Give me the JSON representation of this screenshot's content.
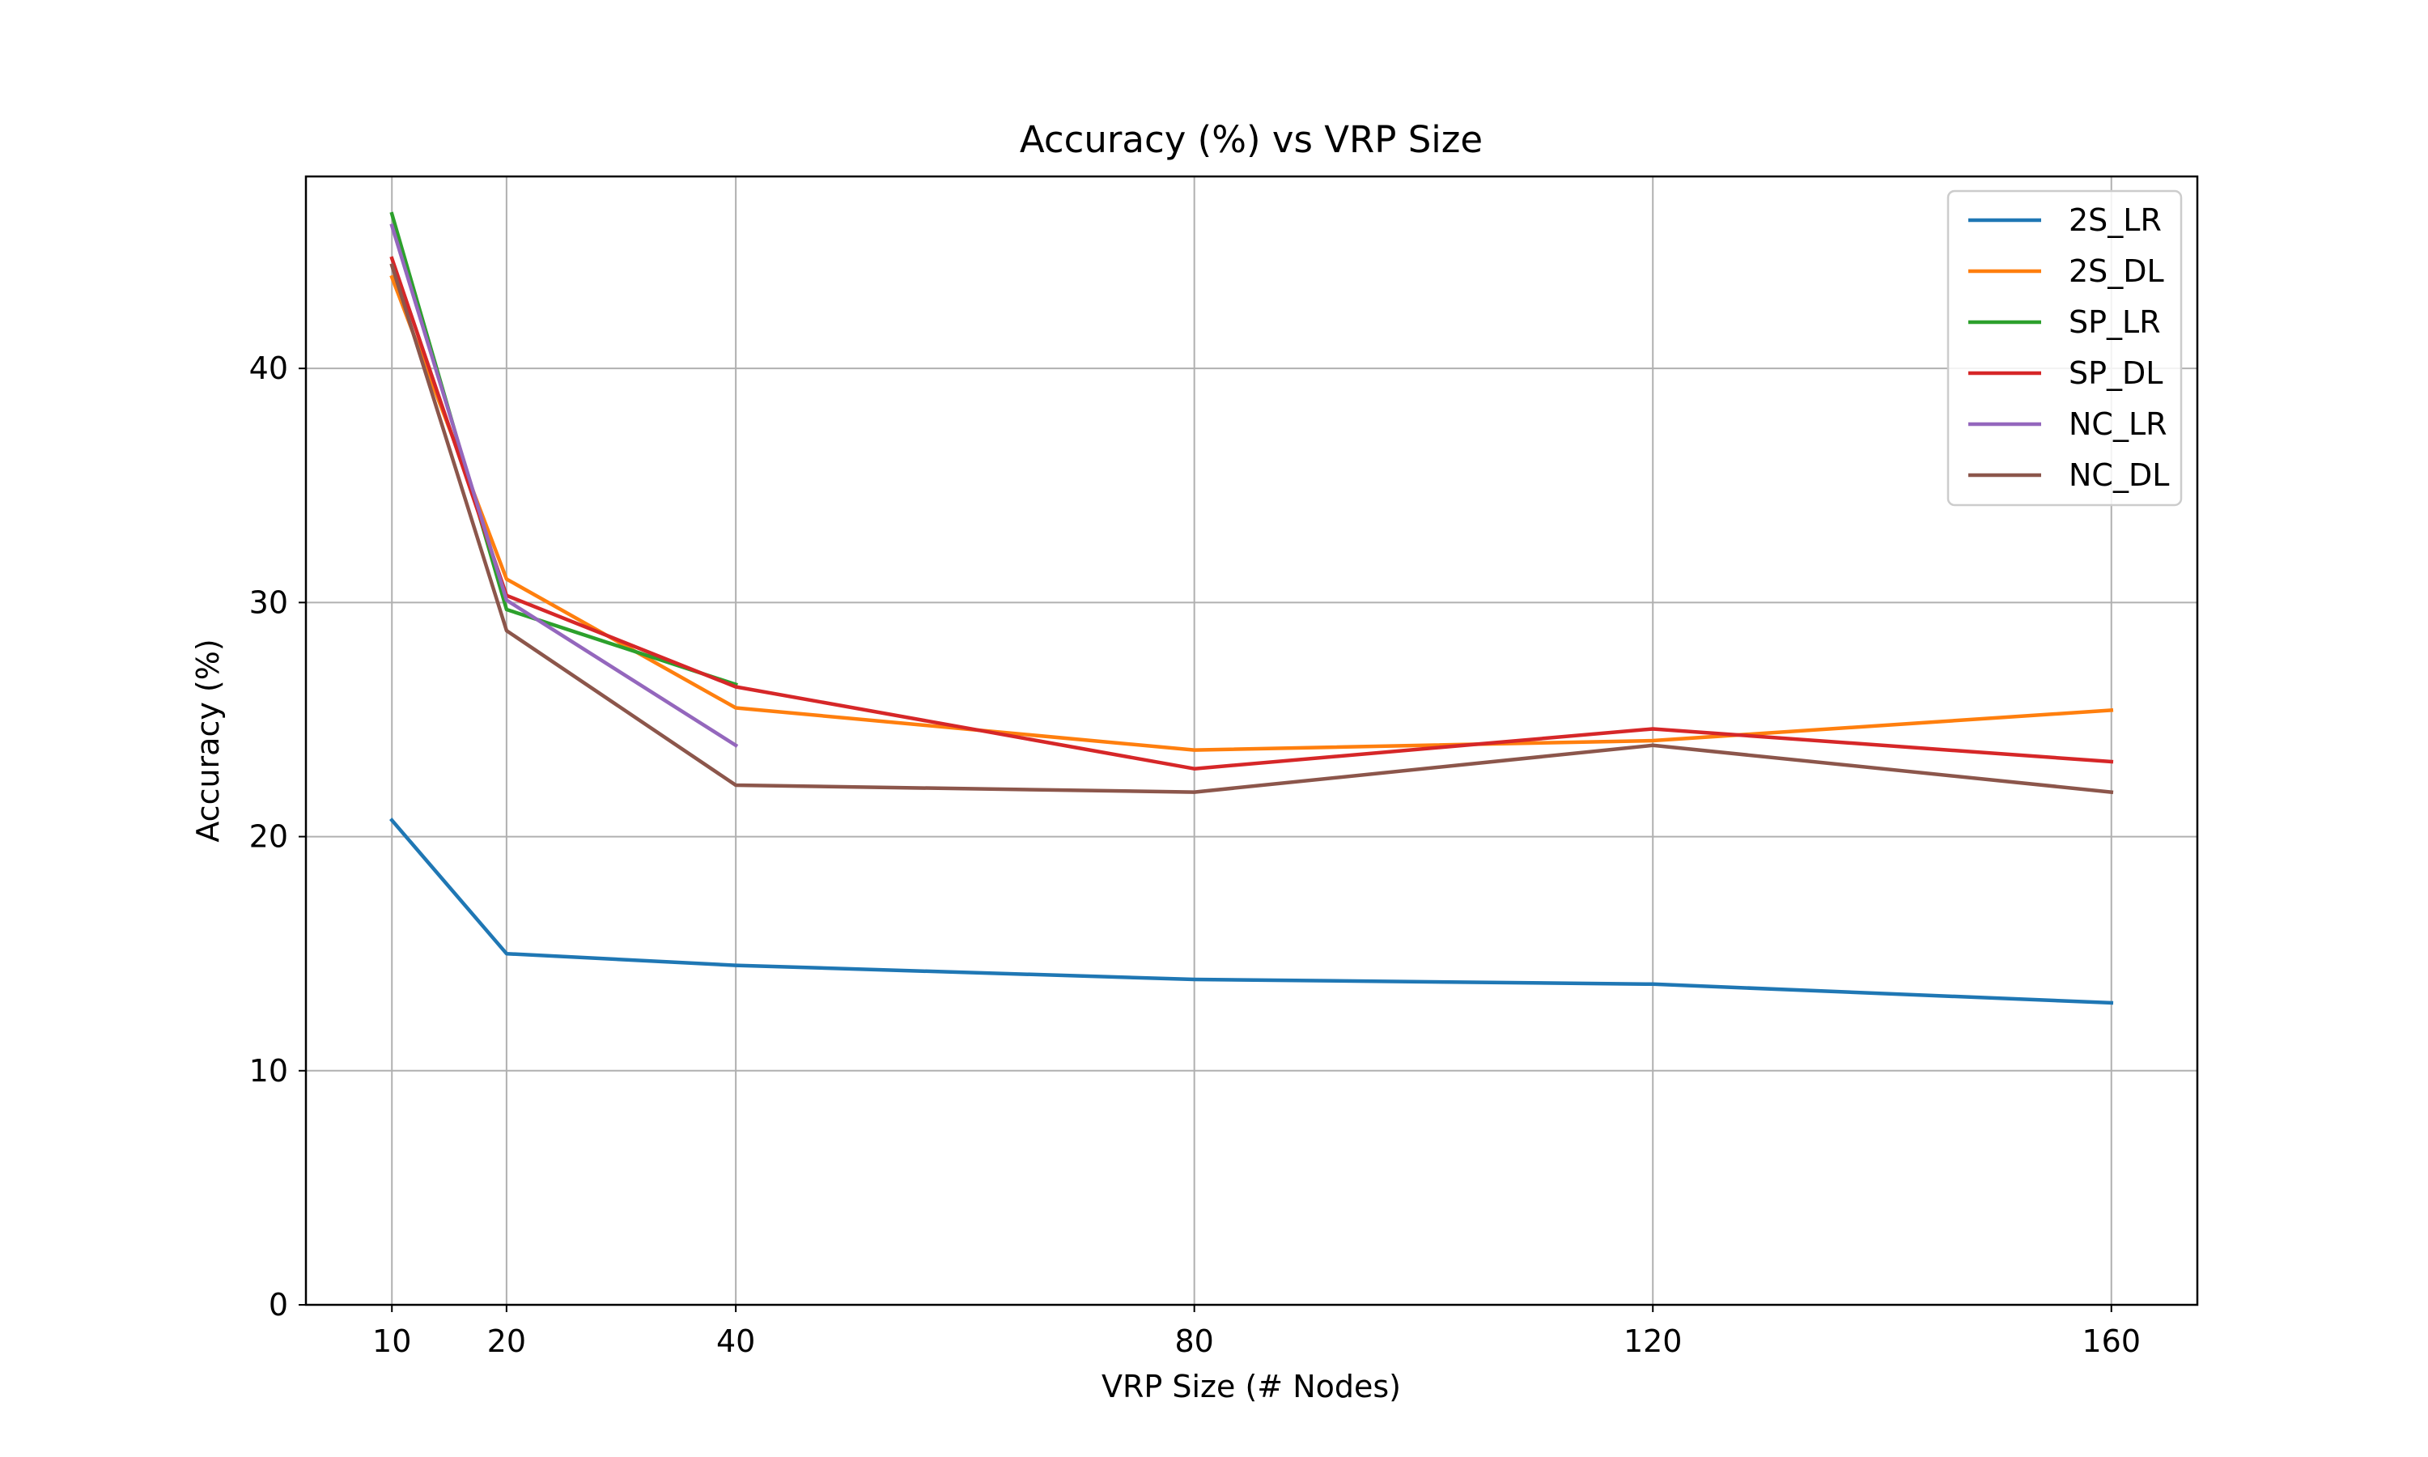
{
  "chart_data": {
    "type": "line",
    "title": "Accuracy (%) vs VRP Size",
    "xlabel": "VRP Size (# Nodes)",
    "ylabel": "Accuracy (%)",
    "x": [
      10,
      20,
      40,
      80,
      120,
      160
    ],
    "xticks": [
      10,
      20,
      40,
      80,
      120,
      160
    ],
    "xtick_labels": [
      "10",
      "20",
      "40",
      "80",
      "120",
      "160"
    ],
    "yticks": [
      0,
      10,
      20,
      30,
      40
    ],
    "ytick_labels": [
      "0",
      "10",
      "20",
      "30",
      "40"
    ],
    "xlim": [
      2.5,
      167.5
    ],
    "ylim": [
      0,
      48.2
    ],
    "grid": true,
    "legend_position": "top-right",
    "series": [
      {
        "name": "2S_LR",
        "color": "#1f77b4",
        "x": [
          10,
          20,
          40,
          80,
          120,
          160
        ],
        "values": [
          20.7,
          15.0,
          14.5,
          13.9,
          13.7,
          12.9
        ]
      },
      {
        "name": "2S_DL",
        "color": "#ff7f0e",
        "x": [
          10,
          20,
          40,
          80,
          120,
          160
        ],
        "values": [
          43.9,
          31.0,
          25.5,
          23.7,
          24.1,
          25.4
        ]
      },
      {
        "name": "SP_LR",
        "color": "#2ca02c",
        "x": [
          10,
          20,
          40
        ],
        "values": [
          46.6,
          29.7,
          26.5
        ]
      },
      {
        "name": "SP_DL",
        "color": "#d62728",
        "x": [
          10,
          20,
          40,
          80,
          120,
          160
        ],
        "values": [
          44.7,
          30.3,
          26.4,
          22.9,
          24.6,
          23.2
        ]
      },
      {
        "name": "NC_LR",
        "color": "#9467bd",
        "x": [
          10,
          20,
          40
        ],
        "values": [
          46.1,
          30.1,
          23.9
        ]
      },
      {
        "name": "NC_DL",
        "color": "#8c564b",
        "x": [
          10,
          20,
          40,
          80,
          120,
          160
        ],
        "values": [
          44.4,
          28.8,
          22.2,
          21.9,
          23.9,
          21.9
        ]
      }
    ]
  }
}
